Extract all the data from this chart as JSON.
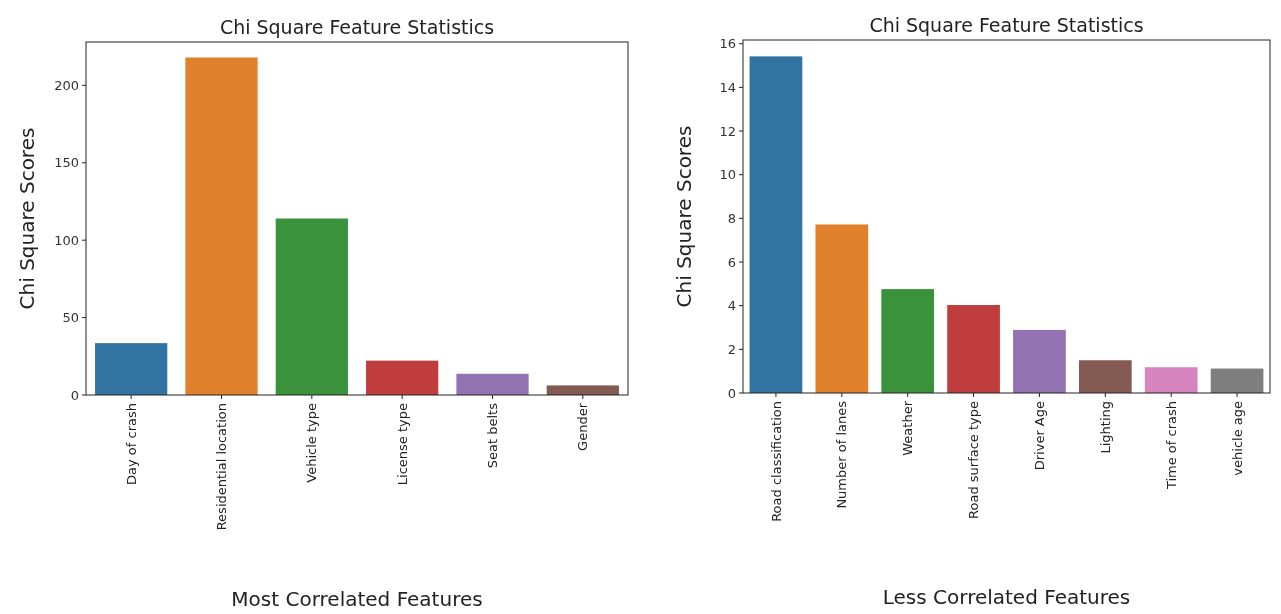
{
  "chart_data": [
    {
      "type": "bar",
      "title": "Chi Square Feature Statistics",
      "xlabel": "Most Correlated Features",
      "ylabel": "Chi Square Scores",
      "categories": [
        "Day of crash",
        "Residential location",
        "Vehicle type",
        "License type",
        "Seat belts",
        "Gender"
      ],
      "values": [
        33.5,
        218,
        114,
        22.2,
        13.7,
        6.2
      ],
      "colors": [
        "#3274a1",
        "#e1812c",
        "#3a923a",
        "#c03d3e",
        "#9372b2",
        "#845b53"
      ],
      "ylim": [
        0,
        228
      ],
      "yticks": [
        0,
        50,
        100,
        150,
        200
      ]
    },
    {
      "type": "bar",
      "title": "Chi Square Feature Statistics",
      "xlabel": "Less Correlated Features",
      "ylabel": "Chi Square Scores",
      "categories": [
        "Road classification",
        "Number of lanes",
        "Weather",
        "Road surface type",
        "Driver Age",
        "Lighting",
        "Time of crash",
        "vehicle age"
      ],
      "values": [
        15.42,
        7.72,
        4.76,
        4.03,
        2.89,
        1.5,
        1.18,
        1.12
      ],
      "colors": [
        "#3274a1",
        "#e1812c",
        "#3a923a",
        "#c03d3e",
        "#9372b2",
        "#845b53",
        "#d684bd",
        "#7f7f7f"
      ],
      "ylim": [
        0,
        16.17
      ],
      "yticks": [
        0,
        2,
        4,
        6,
        8,
        10,
        12,
        14,
        16
      ]
    }
  ]
}
